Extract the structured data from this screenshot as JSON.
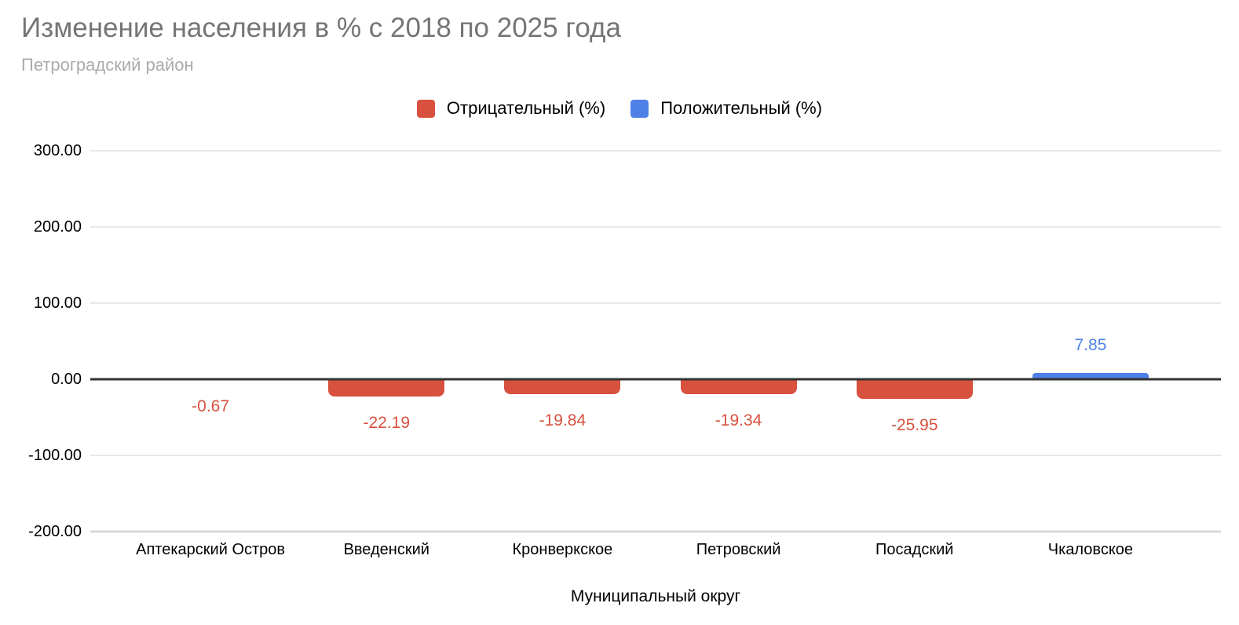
{
  "chart_data": {
    "type": "bar",
    "title": "Изменение населения в % с 2018 по 2025 года",
    "subtitle": "Петроградский район",
    "xlabel": "Муниципальный округ",
    "ylabel": "",
    "categories": [
      "Аптекарский Остров",
      "Введенский",
      "Кронверкское",
      "Петровский",
      "Посадский",
      "Чкаловское"
    ],
    "series": [
      {
        "name": "Отрицательный (%)",
        "color": "#d8503e",
        "values": [
          -0.67,
          -22.19,
          -19.84,
          -19.34,
          -25.95,
          null
        ]
      },
      {
        "name": "Положительный (%)",
        "color": "#4e80e8",
        "values": [
          null,
          null,
          null,
          null,
          null,
          7.85
        ]
      }
    ],
    "data_labels": [
      "-0.67",
      "-22.19",
      "-19.84",
      "-19.34",
      "-25.95",
      "7.85"
    ],
    "yticks": [
      {
        "value": 300,
        "label": "300.00"
      },
      {
        "value": 200,
        "label": "200.00"
      },
      {
        "value": 100,
        "label": "100.00"
      },
      {
        "value": 0,
        "label": "0.00"
      },
      {
        "value": -100,
        "label": "-100.00"
      },
      {
        "value": -200,
        "label": "-200.00"
      }
    ],
    "ylim": [
      -200,
      300
    ],
    "grid": true,
    "legend_position": "top",
    "colors": {
      "negative": "#d8503e",
      "positive": "#4e80e8",
      "gridline": "#e8e8e8",
      "zero_line": "#333333",
      "bottom_line": "#d9d9d9",
      "title": "#757575",
      "subtitle": "#ababab",
      "axis_text": "#000000"
    }
  }
}
